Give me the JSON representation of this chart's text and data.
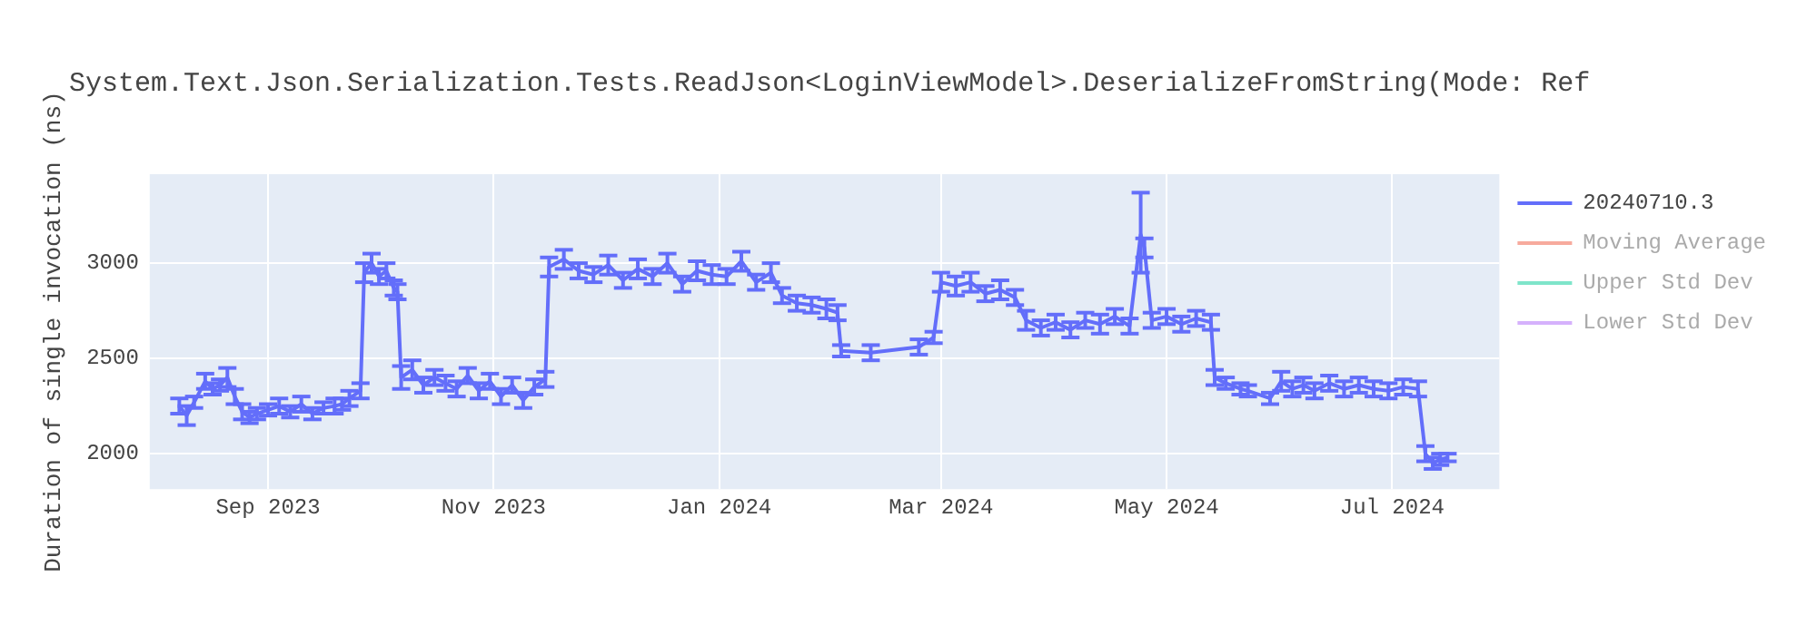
{
  "chart_data": {
    "type": "line",
    "title": "System.Text.Json.Serialization.Tests.ReadJson<LoginViewModel>.DeserializeFromString(Mode: Ref",
    "ylabel": "Duration of single invocation (ns)",
    "x": [
      "2023-08-08",
      "2023-08-10",
      "2023-08-12",
      "2023-08-15",
      "2023-08-17",
      "2023-08-19",
      "2023-08-21",
      "2023-08-23",
      "2023-08-25",
      "2023-08-27",
      "2023-08-29",
      "2023-09-01",
      "2023-09-04",
      "2023-09-07",
      "2023-09-10",
      "2023-09-13",
      "2023-09-16",
      "2023-09-19",
      "2023-09-21",
      "2023-09-23",
      "2023-09-26",
      "2023-09-27",
      "2023-09-29",
      "2023-10-01",
      "2023-10-03",
      "2023-10-05",
      "2023-10-06",
      "2023-10-07",
      "2023-10-10",
      "2023-10-13",
      "2023-10-16",
      "2023-10-19",
      "2023-10-22",
      "2023-10-25",
      "2023-10-28",
      "2023-10-31",
      "2023-11-03",
      "2023-11-06",
      "2023-11-09",
      "2023-11-12",
      "2023-11-15",
      "2023-11-16",
      "2023-11-20",
      "2023-11-24",
      "2023-11-28",
      "2023-12-02",
      "2023-12-06",
      "2023-12-10",
      "2023-12-14",
      "2023-12-18",
      "2023-12-22",
      "2023-12-26",
      "2023-12-30",
      "2024-01-03",
      "2024-01-07",
      "2024-01-11",
      "2024-01-15",
      "2024-01-18",
      "2024-01-22",
      "2024-01-26",
      "2024-01-30",
      "2024-02-02",
      "2024-02-03",
      "2024-02-11",
      "2024-02-24",
      "2024-02-28",
      "2024-03-01",
      "2024-03-05",
      "2024-03-09",
      "2024-03-13",
      "2024-03-17",
      "2024-03-21",
      "2024-03-24",
      "2024-03-28",
      "2024-04-01",
      "2024-04-05",
      "2024-04-09",
      "2024-04-13",
      "2024-04-17",
      "2024-04-21",
      "2024-04-24",
      "2024-04-25",
      "2024-04-27",
      "2024-05-01",
      "2024-05-05",
      "2024-05-09",
      "2024-05-13",
      "2024-05-14",
      "2024-05-17",
      "2024-05-21",
      "2024-05-23",
      "2024-05-29",
      "2024-06-01",
      "2024-06-04",
      "2024-06-07",
      "2024-06-10",
      "2024-06-14",
      "2024-06-18",
      "2024-06-22",
      "2024-06-26",
      "2024-06-30",
      "2024-07-04",
      "2024-07-08",
      "2024-07-10",
      "2024-07-12",
      "2024-07-14",
      "2024-07-16"
    ],
    "series": [
      {
        "name": "20240710.3",
        "color": "#636efa",
        "values": [
          2250,
          2200,
          2270,
          2380,
          2340,
          2360,
          2400,
          2300,
          2220,
          2190,
          2210,
          2230,
          2250,
          2220,
          2260,
          2210,
          2240,
          2250,
          2260,
          2290,
          2330,
          2950,
          3000,
          2930,
          2960,
          2870,
          2850,
          2400,
          2440,
          2360,
          2400,
          2370,
          2340,
          2410,
          2330,
          2380,
          2300,
          2360,
          2280,
          2350,
          2390,
          2980,
          3020,
          2960,
          2940,
          2990,
          2910,
          2970,
          2930,
          3000,
          2890,
          2960,
          2940,
          2930,
          3010,
          2900,
          2950,
          2830,
          2790,
          2780,
          2760,
          2740,
          2540,
          2530,
          2560,
          2610,
          2900,
          2880,
          2900,
          2840,
          2860,
          2820,
          2700,
          2660,
          2690,
          2650,
          2700,
          2680,
          2720,
          2670,
          3150,
          3080,
          2700,
          2720,
          2680,
          2710,
          2690,
          2400,
          2370,
          2340,
          2330,
          2290,
          2380,
          2340,
          2360,
          2330,
          2370,
          2340,
          2360,
          2340,
          2330,
          2350,
          2340,
          2000,
          1950,
          1970,
          1980
        ],
        "errors": [
          40,
          50,
          30,
          40,
          30,
          30,
          50,
          40,
          40,
          30,
          30,
          30,
          40,
          30,
          40,
          30,
          30,
          40,
          30,
          40,
          40,
          50,
          50,
          40,
          40,
          40,
          40,
          60,
          50,
          40,
          40,
          40,
          40,
          40,
          40,
          40,
          40,
          40,
          40,
          40,
          40,
          50,
          50,
          40,
          40,
          50,
          40,
          50,
          40,
          50,
          40,
          50,
          50,
          40,
          50,
          40,
          50,
          40,
          40,
          40,
          50,
          40,
          30,
          40,
          40,
          30,
          50,
          50,
          50,
          40,
          50,
          40,
          50,
          40,
          40,
          40,
          40,
          50,
          40,
          40,
          [
            2950,
            3370
          ],
          50,
          40,
          40,
          40,
          40,
          40,
          40,
          30,
          30,
          30,
          30,
          50,
          40,
          40,
          40,
          40,
          40,
          40,
          40,
          40,
          40,
          40,
          40,
          30,
          30,
          20
        ]
      },
      {
        "name": "Moving Average",
        "color": "#ef553b",
        "values": [
          null,
          null,
          null,
          null,
          null,
          null,
          null,
          null,
          null,
          null,
          null,
          null,
          null,
          null,
          null,
          null,
          null,
          null,
          null,
          null,
          null,
          null,
          null,
          null,
          null,
          null,
          null,
          null,
          null,
          null,
          null,
          null,
          null,
          null,
          null,
          null,
          null,
          null,
          null,
          null,
          null,
          null,
          null,
          null,
          null,
          null,
          null,
          null,
          null,
          null,
          null,
          null,
          null,
          null,
          null,
          null,
          null,
          null,
          null,
          null,
          null,
          null,
          null,
          null,
          null,
          null,
          null,
          null,
          null,
          null,
          null,
          null,
          null,
          null,
          null,
          null,
          null,
          null,
          null,
          null,
          null,
          null,
          null,
          null,
          null,
          null,
          null,
          null,
          null,
          null,
          null,
          null,
          null,
          null,
          null,
          null,
          null,
          null,
          null,
          null,
          null,
          null,
          null,
          null,
          null,
          null,
          null
        ]
      },
      {
        "name": "Upper Std Dev",
        "color": "#00cc96",
        "values": [
          null,
          null,
          null,
          null,
          null,
          null,
          null,
          null,
          null,
          null,
          null,
          null,
          null,
          null,
          null,
          null,
          null,
          null,
          null,
          null,
          null,
          null,
          null,
          null,
          null,
          null,
          null,
          null,
          null,
          null,
          null,
          null,
          null,
          null,
          null,
          null,
          null,
          null,
          null,
          null,
          null,
          null,
          null,
          null,
          null,
          null,
          null,
          null,
          null,
          null,
          null,
          null,
          null,
          null,
          null,
          null,
          null,
          null,
          null,
          null,
          null,
          null,
          null,
          null,
          null,
          null,
          null,
          null,
          null,
          null,
          null,
          null,
          null,
          null,
          null,
          null,
          null,
          null,
          null,
          null,
          null,
          null,
          null,
          null,
          null,
          null,
          null,
          null,
          null,
          null,
          null,
          null,
          null,
          null,
          null,
          null,
          null,
          null,
          null,
          null,
          null,
          null,
          null,
          null,
          null,
          null,
          null
        ]
      },
      {
        "name": "Lower Std Dev",
        "color": "#ab63fa",
        "values": [
          null,
          null,
          null,
          null,
          null,
          null,
          null,
          null,
          null,
          null,
          null,
          null,
          null,
          null,
          null,
          null,
          null,
          null,
          null,
          null,
          null,
          null,
          null,
          null,
          null,
          null,
          null,
          null,
          null,
          null,
          null,
          null,
          null,
          null,
          null,
          null,
          null,
          null,
          null,
          null,
          null,
          null,
          null,
          null,
          null,
          null,
          null,
          null,
          null,
          null,
          null,
          null,
          null,
          null,
          null,
          null,
          null,
          null,
          null,
          null,
          null,
          null,
          null,
          null,
          null,
          null,
          null,
          null,
          null,
          null,
          null,
          null,
          null,
          null,
          null,
          null,
          null,
          null,
          null,
          null,
          null,
          null,
          null,
          null,
          null,
          null,
          null,
          null,
          null,
          null,
          null,
          null,
          null,
          null,
          null,
          null,
          null,
          null,
          null,
          null,
          null,
          null,
          null,
          null,
          null,
          null,
          null
        ]
      }
    ],
    "xlim": [
      "2023-07-31",
      "2024-07-30"
    ],
    "xticks": [
      {
        "value": "2023-09-01",
        "label": "Sep 2023"
      },
      {
        "value": "2023-11-01",
        "label": "Nov 2023"
      },
      {
        "value": "2024-01-01",
        "label": "Jan 2024"
      },
      {
        "value": "2024-03-01",
        "label": "Mar 2024"
      },
      {
        "value": "2024-05-01",
        "label": "May 2024"
      },
      {
        "value": "2024-07-01",
        "label": "Jul 2024"
      }
    ],
    "ylim": [
      1814,
      3467
    ],
    "yticks": [
      2000,
      2500,
      3000
    ],
    "grid": true,
    "legend": "top right",
    "marker": "none",
    "line_style": "solid"
  }
}
